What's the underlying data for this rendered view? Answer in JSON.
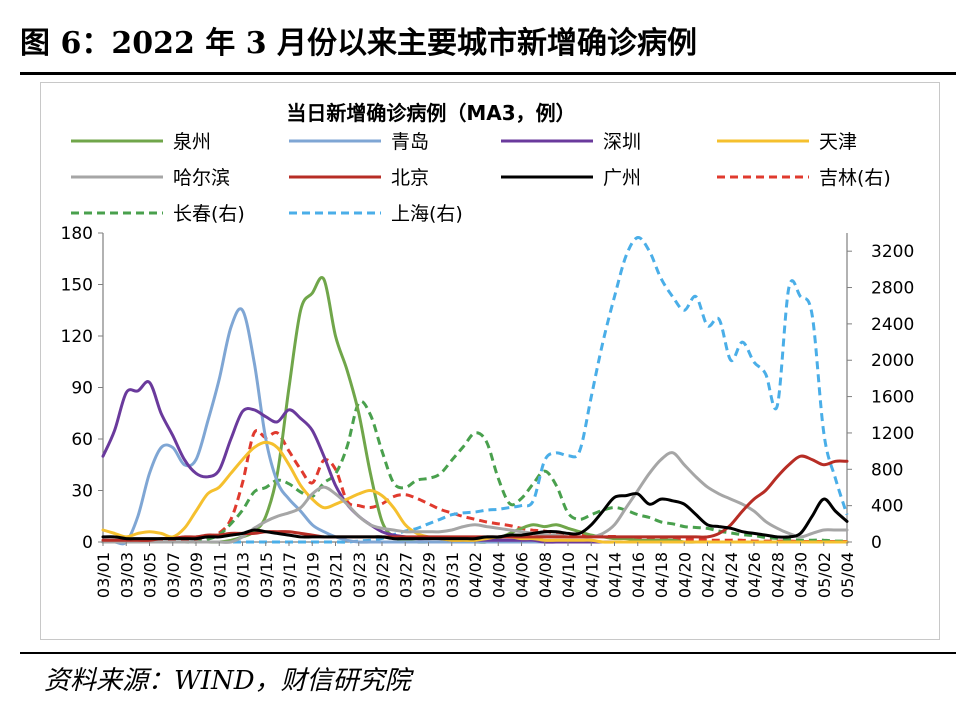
{
  "figure": {
    "title": "图 6：2022 年 3 月份以来主要城市新增确诊病例",
    "source": "资料来源：WIND，财信研究院"
  },
  "chart_data": {
    "type": "line",
    "title": "当日新增确诊病例（MA3，例）",
    "xlabel": "",
    "ylabel": "",
    "ylim": [
      0,
      180
    ],
    "yticks": [
      0,
      30,
      60,
      90,
      120,
      150,
      180
    ],
    "y2lim": [
      0,
      3400
    ],
    "y2ticks": [
      0,
      400,
      800,
      1200,
      1600,
      2000,
      2400,
      2800,
      3200
    ],
    "tick_labels": [
      "03/01",
      "03/03",
      "03/05",
      "03/07",
      "03/09",
      "03/11",
      "03/13",
      "03/15",
      "03/17",
      "03/19",
      "03/21",
      "03/23",
      "03/25",
      "03/27",
      "03/29",
      "03/31",
      "04/02",
      "04/04",
      "04/06",
      "04/08",
      "04/10",
      "04/12",
      "04/14",
      "04/16",
      "04/18",
      "04/20",
      "04/22",
      "04/24",
      "04/26",
      "04/28",
      "04/30",
      "05/02",
      "05/04"
    ],
    "x": [
      "03/01",
      "03/02",
      "03/03",
      "03/04",
      "03/05",
      "03/06",
      "03/07",
      "03/08",
      "03/09",
      "03/10",
      "03/11",
      "03/12",
      "03/13",
      "03/14",
      "03/15",
      "03/16",
      "03/17",
      "03/18",
      "03/19",
      "03/20",
      "03/21",
      "03/22",
      "03/23",
      "03/24",
      "03/25",
      "03/26",
      "03/27",
      "03/28",
      "03/29",
      "03/30",
      "03/31",
      "04/01",
      "04/02",
      "04/03",
      "04/04",
      "04/05",
      "04/06",
      "04/07",
      "04/08",
      "04/09",
      "04/10",
      "04/11",
      "04/12",
      "04/13",
      "04/14",
      "04/15",
      "04/16",
      "04/17",
      "04/18",
      "04/19",
      "04/20",
      "04/21",
      "04/22",
      "04/23",
      "04/24",
      "04/25",
      "04/26",
      "04/27",
      "04/28",
      "04/29",
      "04/30",
      "05/01",
      "05/02",
      "05/03",
      "05/04"
    ],
    "series": [
      {
        "name": "泉州",
        "axis": "left",
        "color": "#70a64a",
        "dash": false,
        "values": [
          0,
          0,
          0,
          0,
          0,
          0,
          0,
          0,
          0,
          0,
          0,
          1,
          3,
          6,
          15,
          40,
          90,
          135,
          145,
          153,
          120,
          100,
          75,
          40,
          12,
          3,
          1,
          0,
          0,
          0,
          0,
          0,
          0,
          0,
          2,
          5,
          8,
          10,
          9,
          10,
          8,
          6,
          4,
          3,
          2,
          2,
          1,
          1,
          1,
          1,
          0,
          0,
          0,
          0,
          0,
          0,
          0,
          0,
          0,
          0,
          0,
          0,
          0,
          0,
          0
        ]
      },
      {
        "name": "青岛",
        "axis": "left",
        "color": "#7fa6d4",
        "dash": false,
        "values": [
          0,
          0,
          0,
          15,
          40,
          55,
          55,
          45,
          48,
          70,
          95,
          125,
          135,
          105,
          60,
          35,
          25,
          18,
          10,
          6,
          3,
          1,
          0,
          0,
          0,
          0,
          0,
          0,
          0,
          0,
          0,
          0,
          0,
          0,
          0,
          0,
          0,
          0,
          0,
          0,
          0,
          0,
          0,
          0,
          0,
          0,
          0,
          0,
          0,
          0,
          0,
          0,
          0,
          0,
          0,
          0,
          0,
          0,
          0,
          0,
          0,
          0,
          0,
          0,
          0
        ]
      },
      {
        "name": "深圳",
        "axis": "left",
        "color": "#6a3a9c",
        "dash": false,
        "values": [
          50,
          65,
          87,
          88,
          93,
          75,
          62,
          48,
          40,
          38,
          42,
          60,
          76,
          77,
          73,
          70,
          77,
          72,
          65,
          50,
          33,
          22,
          15,
          10,
          6,
          4,
          3,
          2,
          2,
          2,
          1,
          1,
          1,
          1,
          1,
          1,
          1,
          1,
          0,
          0,
          0,
          0,
          0,
          0,
          0,
          0,
          0,
          0,
          0,
          0,
          0,
          0,
          0,
          0,
          0,
          0,
          0,
          0,
          0,
          0,
          0,
          0,
          0,
          0,
          0
        ]
      },
      {
        "name": "天津",
        "axis": "left",
        "color": "#f5c02e",
        "dash": false,
        "values": [
          7,
          5,
          3,
          5,
          6,
          5,
          3,
          8,
          18,
          28,
          32,
          40,
          48,
          55,
          58,
          55,
          45,
          33,
          25,
          20,
          22,
          25,
          28,
          30,
          27,
          20,
          10,
          5,
          3,
          2,
          1,
          1,
          1,
          2,
          3,
          3,
          2,
          2,
          1,
          1,
          1,
          1,
          1,
          0,
          0,
          0,
          0,
          0,
          0,
          0,
          0,
          0,
          0,
          0,
          0,
          0,
          0,
          0,
          0,
          0,
          0,
          0,
          0,
          0,
          0
        ]
      },
      {
        "name": "哈尔滨",
        "axis": "left",
        "color": "#a6a6a6",
        "dash": false,
        "values": [
          0,
          0,
          0,
          0,
          0,
          0,
          0,
          0,
          0,
          0,
          0,
          0,
          3,
          8,
          12,
          15,
          17,
          20,
          28,
          32,
          28,
          22,
          15,
          10,
          8,
          7,
          6,
          6,
          6,
          6,
          7,
          9,
          10,
          9,
          8,
          7,
          6,
          5,
          4,
          4,
          3,
          3,
          3,
          5,
          10,
          20,
          30,
          40,
          48,
          52,
          45,
          38,
          32,
          28,
          25,
          22,
          18,
          12,
          8,
          5,
          3,
          5,
          7,
          7,
          7
        ]
      },
      {
        "name": "北京",
        "axis": "left",
        "color": "#b72d25",
        "dash": false,
        "values": [
          1,
          1,
          1,
          1,
          1,
          2,
          2,
          3,
          3,
          4,
          4,
          5,
          5,
          5,
          6,
          6,
          6,
          5,
          4,
          3,
          3,
          3,
          3,
          3,
          3,
          3,
          3,
          3,
          3,
          3,
          3,
          3,
          3,
          3,
          3,
          3,
          3,
          3,
          3,
          3,
          3,
          3,
          3,
          3,
          3,
          3,
          3,
          3,
          3,
          3,
          3,
          3,
          3,
          5,
          10,
          18,
          25,
          30,
          38,
          45,
          50,
          48,
          45,
          47,
          47
        ]
      },
      {
        "name": "广州",
        "axis": "left",
        "color": "#000000",
        "dash": false,
        "values": [
          3,
          3,
          2,
          2,
          2,
          2,
          2,
          2,
          2,
          3,
          3,
          4,
          5,
          7,
          6,
          5,
          4,
          3,
          3,
          3,
          3,
          3,
          3,
          3,
          3,
          2,
          2,
          2,
          2,
          2,
          2,
          2,
          2,
          3,
          3,
          4,
          4,
          5,
          6,
          6,
          5,
          5,
          10,
          18,
          26,
          27,
          28,
          22,
          25,
          24,
          22,
          16,
          10,
          9,
          8,
          6,
          5,
          4,
          3,
          3,
          5,
          15,
          25,
          18,
          12
        ]
      },
      {
        "name": "吉林(右)",
        "axis": "right",
        "color": "#e03a2e",
        "dash": true,
        "values": [
          0,
          0,
          0,
          0,
          0,
          5,
          10,
          20,
          30,
          60,
          100,
          250,
          650,
          1200,
          1150,
          1200,
          1000,
          800,
          650,
          900,
          800,
          450,
          400,
          380,
          420,
          500,
          520,
          480,
          420,
          360,
          320,
          280,
          250,
          220,
          200,
          180,
          150,
          130,
          120,
          100,
          90,
          80,
          70,
          60,
          60,
          50,
          50,
          40,
          40,
          30,
          30,
          30,
          20,
          20,
          20,
          20,
          10,
          10,
          10,
          10,
          5,
          5,
          5,
          5,
          5
        ]
      },
      {
        "name": "长春(右)",
        "axis": "right",
        "color": "#49a04d",
        "dash": true,
        "values": [
          0,
          0,
          0,
          0,
          0,
          0,
          0,
          0,
          0,
          30,
          80,
          200,
          350,
          550,
          600,
          680,
          640,
          550,
          500,
          650,
          750,
          1050,
          1530,
          1400,
          1000,
          650,
          600,
          680,
          700,
          750,
          900,
          1050,
          1200,
          1100,
          700,
          420,
          480,
          640,
          780,
          620,
          320,
          250,
          300,
          350,
          380,
          350,
          300,
          270,
          220,
          200,
          170,
          160,
          150,
          120,
          100,
          80,
          70,
          50,
          40,
          30,
          20,
          20,
          20,
          10,
          10
        ]
      },
      {
        "name": "上海(右)",
        "axis": "right",
        "color": "#4aaee8",
        "dash": true,
        "values": [
          0,
          0,
          0,
          0,
          0,
          0,
          0,
          0,
          0,
          0,
          0,
          0,
          0,
          0,
          0,
          0,
          0,
          0,
          0,
          0,
          0,
          0,
          10,
          20,
          40,
          80,
          120,
          150,
          200,
          250,
          300,
          320,
          330,
          350,
          360,
          380,
          400,
          450,
          900,
          980,
          950,
          1000,
          1600,
          2200,
          2700,
          3150,
          3350,
          3200,
          2900,
          2700,
          2550,
          2700,
          2380,
          2450,
          2000,
          2200,
          1980,
          1850,
          1500,
          2800,
          2700,
          2500,
          1200,
          700,
          300
        ]
      }
    ]
  }
}
